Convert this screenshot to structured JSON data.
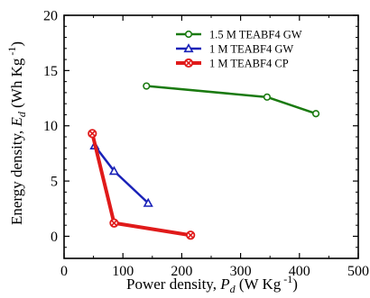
{
  "chart_data": {
    "type": "line",
    "xlabel": {
      "pre": "Power density, ",
      "symbol": "P",
      "subscript": "d",
      "unit_pre": " (W Kg",
      "unit_sup": " -1",
      "unit_post": ")"
    },
    "ylabel": {
      "pre": "Energy density, ",
      "symbol": "E",
      "subscript": "d",
      "unit_pre": " (Wh Kg",
      "unit_sup": " -1",
      "unit_post": ")"
    },
    "xlim": [
      0,
      500
    ],
    "ylim": [
      -2,
      20
    ],
    "xticks": [
      0,
      100,
      200,
      300,
      400,
      500
    ],
    "yticks": [
      0,
      5,
      10,
      15,
      20
    ],
    "grid": false,
    "legend_position": "top-right",
    "series": [
      {
        "name": "1.5 M TEABF4 GW",
        "color": "#1a7a10",
        "marker": "circle",
        "linewidth": 2.5,
        "x": [
          140,
          345,
          428
        ],
        "y": [
          13.6,
          12.6,
          11.1
        ]
      },
      {
        "name": "1 M TEABF4 GW",
        "color": "#1a22b8",
        "marker": "triangle",
        "linewidth": 2.5,
        "x": [
          52,
          85,
          143
        ],
        "y": [
          8.2,
          5.9,
          3.0
        ]
      },
      {
        "name": "1 M TEABF4 CP",
        "color": "#e01a1a",
        "marker": "x-circle",
        "linewidth": 4,
        "x": [
          48,
          85,
          215
        ],
        "y": [
          9.3,
          1.2,
          0.1
        ]
      }
    ]
  }
}
